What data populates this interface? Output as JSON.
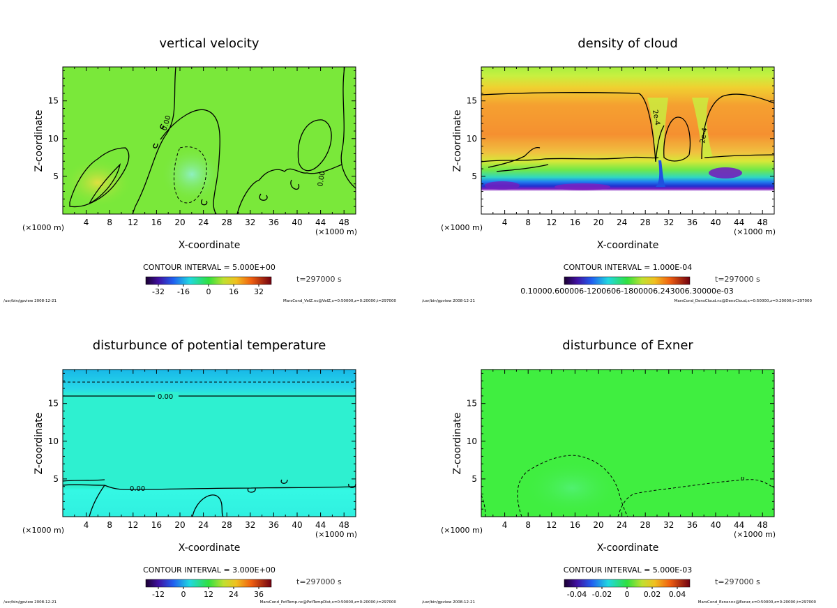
{
  "chart_data": [
    {
      "type": "heatmap",
      "title": "vertical velocity",
      "xlabel": "X-coordinate",
      "ylabel": "Z-coordinate",
      "x_unit": "(×1000 m)",
      "x_ticks": [
        4,
        8,
        12,
        16,
        20,
        24,
        28,
        32,
        36,
        40,
        44,
        48
      ],
      "y_ticks": [
        5,
        10,
        15
      ],
      "xlim": [
        0,
        50
      ],
      "ylim": [
        0,
        19.5
      ],
      "contour_interval": "CONTOUR INTERVAL = 5.000E+00",
      "contour_labels": [
        "0.00",
        "0.00"
      ],
      "colorbar": {
        "ticks": [
          "-32",
          "-16",
          "0",
          "16",
          "32"
        ],
        "range": [
          -40,
          40
        ]
      },
      "time": "t=297000 s",
      "footer_left": "/usr/bin/gpview   2008-12-21",
      "footer_right": "MarsCond_VelZ.nc@VelZ,x=0:50000,z=0:20000,t=297000",
      "colors": {
        "fill": "#7ae83a",
        "anomaly": "#8ef0b8",
        "positive": "#c9e84a"
      }
    },
    {
      "type": "heatmap",
      "title": "density of cloud",
      "xlabel": "X-coordinate",
      "ylabel": "Z-coordinate",
      "x_unit": "(×1000 m)",
      "x_ticks": [
        4,
        8,
        12,
        16,
        20,
        24,
        28,
        32,
        36,
        40,
        44,
        48
      ],
      "y_ticks": [
        5,
        10,
        15
      ],
      "xlim": [
        0,
        50
      ],
      "ylim": [
        0,
        19.5
      ],
      "contour_interval": "CONTOUR INTERVAL = 1.000E-04",
      "contour_labels": [
        "2e-4",
        "2e-4"
      ],
      "colorbar": {
        "ticks_text": "0.10000.600006-1200606-1800006.243006.30000e-03"
      },
      "time": "t=297000 s",
      "footer_left": "/usr/bin/gpview   2008-12-21",
      "footer_right": "MarsCond_DensCloud.nc@DensCloud,x=0:50000,z=0:20000,t=297000",
      "colors": {
        "top": "#c8f040",
        "core": "#f5a030",
        "base": "#2040e0",
        "bottom": "#9020c0"
      }
    },
    {
      "type": "heatmap",
      "title": "disturbunce of potential temperature",
      "xlabel": "X-coordinate",
      "ylabel": "Z-coordinate",
      "x_unit": "(×1000 m)",
      "x_ticks": [
        4,
        8,
        12,
        16,
        20,
        24,
        28,
        32,
        36,
        40,
        44,
        48
      ],
      "y_ticks": [
        5,
        10,
        15
      ],
      "xlim": [
        0,
        50
      ],
      "ylim": [
        0,
        19.5
      ],
      "contour_interval": "CONTOUR INTERVAL = 3.000E+00",
      "contour_labels": [
        "0.00",
        "0.00"
      ],
      "colorbar": {
        "ticks": [
          "-12",
          "0",
          "12",
          "24",
          "36"
        ],
        "range": [
          -18,
          42
        ]
      },
      "time": "t=297000 s",
      "footer_left": "/usr/bin/gpview   2008-12-21",
      "footer_right": "MarsCond_PotTemp.nc@PotTempDist,x=0:50000,z=0:20000,t=297000",
      "colors": {
        "fill": "#2ef0d0",
        "top": "#20c8e8",
        "low": "#30f8e0"
      }
    },
    {
      "type": "heatmap",
      "title": "disturbunce of Exner",
      "xlabel": "X-coordinate",
      "ylabel": "Z-coordinate",
      "x_unit": "(×1000 m)",
      "x_ticks": [
        4,
        8,
        12,
        16,
        20,
        24,
        28,
        32,
        36,
        40,
        44,
        48
      ],
      "y_ticks": [
        5,
        10,
        15
      ],
      "xlim": [
        0,
        50
      ],
      "ylim": [
        0,
        19.5
      ],
      "contour_interval": "CONTOUR INTERVAL = 5.000E-03",
      "contour_labels": [],
      "colorbar": {
        "ticks": [
          "-0.04",
          "-0.02",
          "0",
          "0.02",
          "0.04"
        ],
        "range": [
          -0.05,
          0.05
        ]
      },
      "time": "t=297000 s",
      "footer_left": "/usr/bin/gpview   2008-12-21",
      "footer_right": "MarsCond_Exner.nc@Exner,x=0:50000,z=0:20000,t=297000",
      "colors": {
        "fill": "#40ee40"
      }
    }
  ]
}
